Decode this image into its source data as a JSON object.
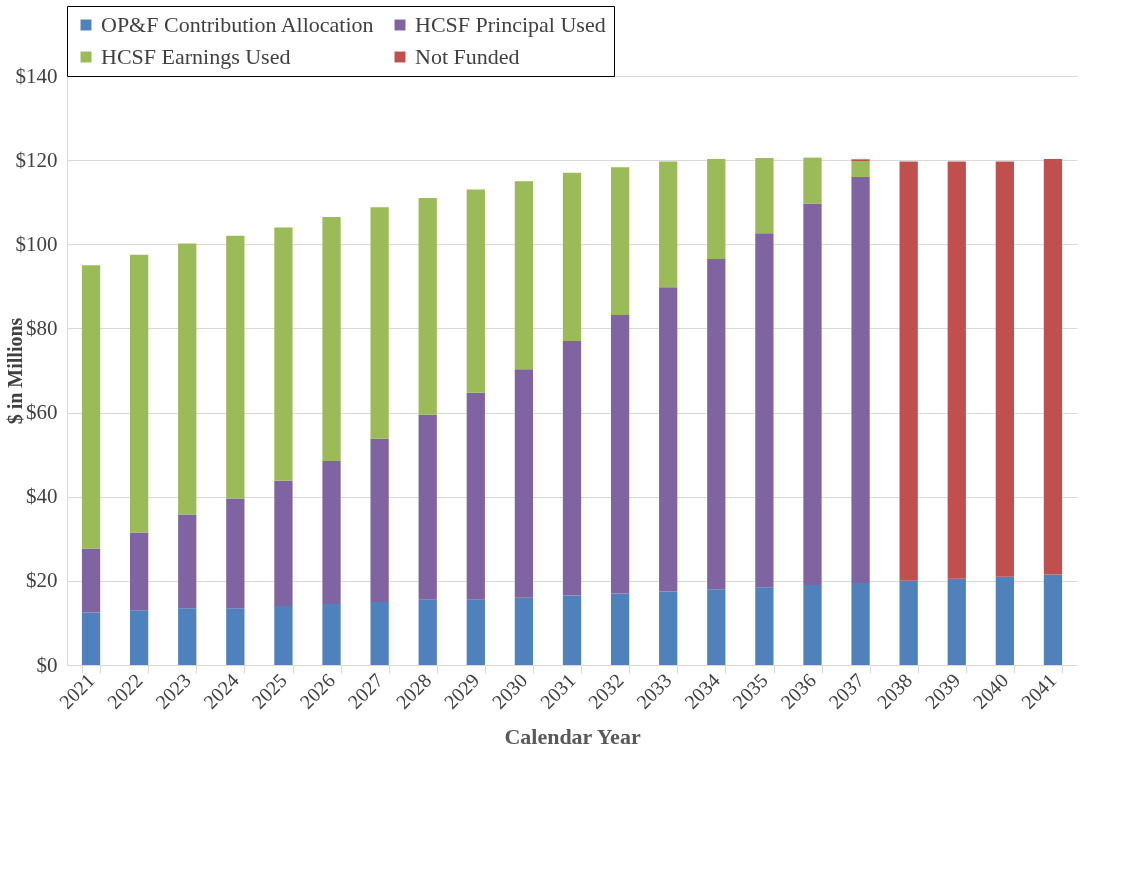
{
  "chart_data": {
    "type": "bar",
    "stacked": true,
    "xlabel": "Calendar  Year",
    "ylabel": "$ in Millions",
    "categories": [
      "2021",
      "2022",
      "2023",
      "2024",
      "2025",
      "2026",
      "2027",
      "2028",
      "2029",
      "2030",
      "2031",
      "2032",
      "2033",
      "2034",
      "2035",
      "2036",
      "2037",
      "2038",
      "2039",
      "2040",
      "2041"
    ],
    "series": [
      {
        "name": "OP&F Contribution Allocation",
        "color": "#4f81bd",
        "values": [
          12.5,
          13,
          13.5,
          13.5,
          14,
          14.5,
          15,
          15.5,
          15.5,
          16,
          16.5,
          17,
          17.5,
          18,
          18.5,
          19,
          19.5,
          20,
          20.5,
          21,
          21.5
        ]
      },
      {
        "name": "HCSF Principal Used",
        "color": "#8064a2",
        "values": [
          15.2,
          18.5,
          22.3,
          26.1,
          29.8,
          34,
          38.8,
          44,
          49.2,
          54.3,
          60.5,
          66.2,
          72.3,
          78.5,
          84.1,
          90.6,
          96.5,
          null,
          null,
          null,
          null
        ]
      },
      {
        "name": "HCSF Earnings Used",
        "color": "#9bbb59",
        "values": [
          67.3,
          66,
          64.4,
          62.4,
          60.2,
          58,
          55,
          51.5,
          48.3,
          44.7,
          40,
          35.1,
          29.9,
          23.8,
          17.9,
          11,
          3.8,
          null,
          null,
          null,
          null
        ]
      },
      {
        "name": "Not Funded",
        "color": "#c0504d",
        "values": [
          null,
          null,
          null,
          null,
          null,
          null,
          null,
          null,
          null,
          null,
          null,
          null,
          null,
          null,
          null,
          null,
          0.4,
          99.7,
          99.2,
          98.7,
          98.8
        ]
      }
    ],
    "ylim": [
      0,
      140
    ],
    "yticks": [
      {
        "value": 0,
        "label": "$0"
      },
      {
        "value": 20,
        "label": "$20"
      },
      {
        "value": 40,
        "label": "$40"
      },
      {
        "value": 60,
        "label": "$60"
      },
      {
        "value": 80,
        "label": "$80"
      },
      {
        "value": 100,
        "label": "$100"
      },
      {
        "value": 120,
        "label": "$120"
      },
      {
        "value": 140,
        "label": "$140"
      }
    ],
    "grid": "y",
    "legend": "top"
  }
}
